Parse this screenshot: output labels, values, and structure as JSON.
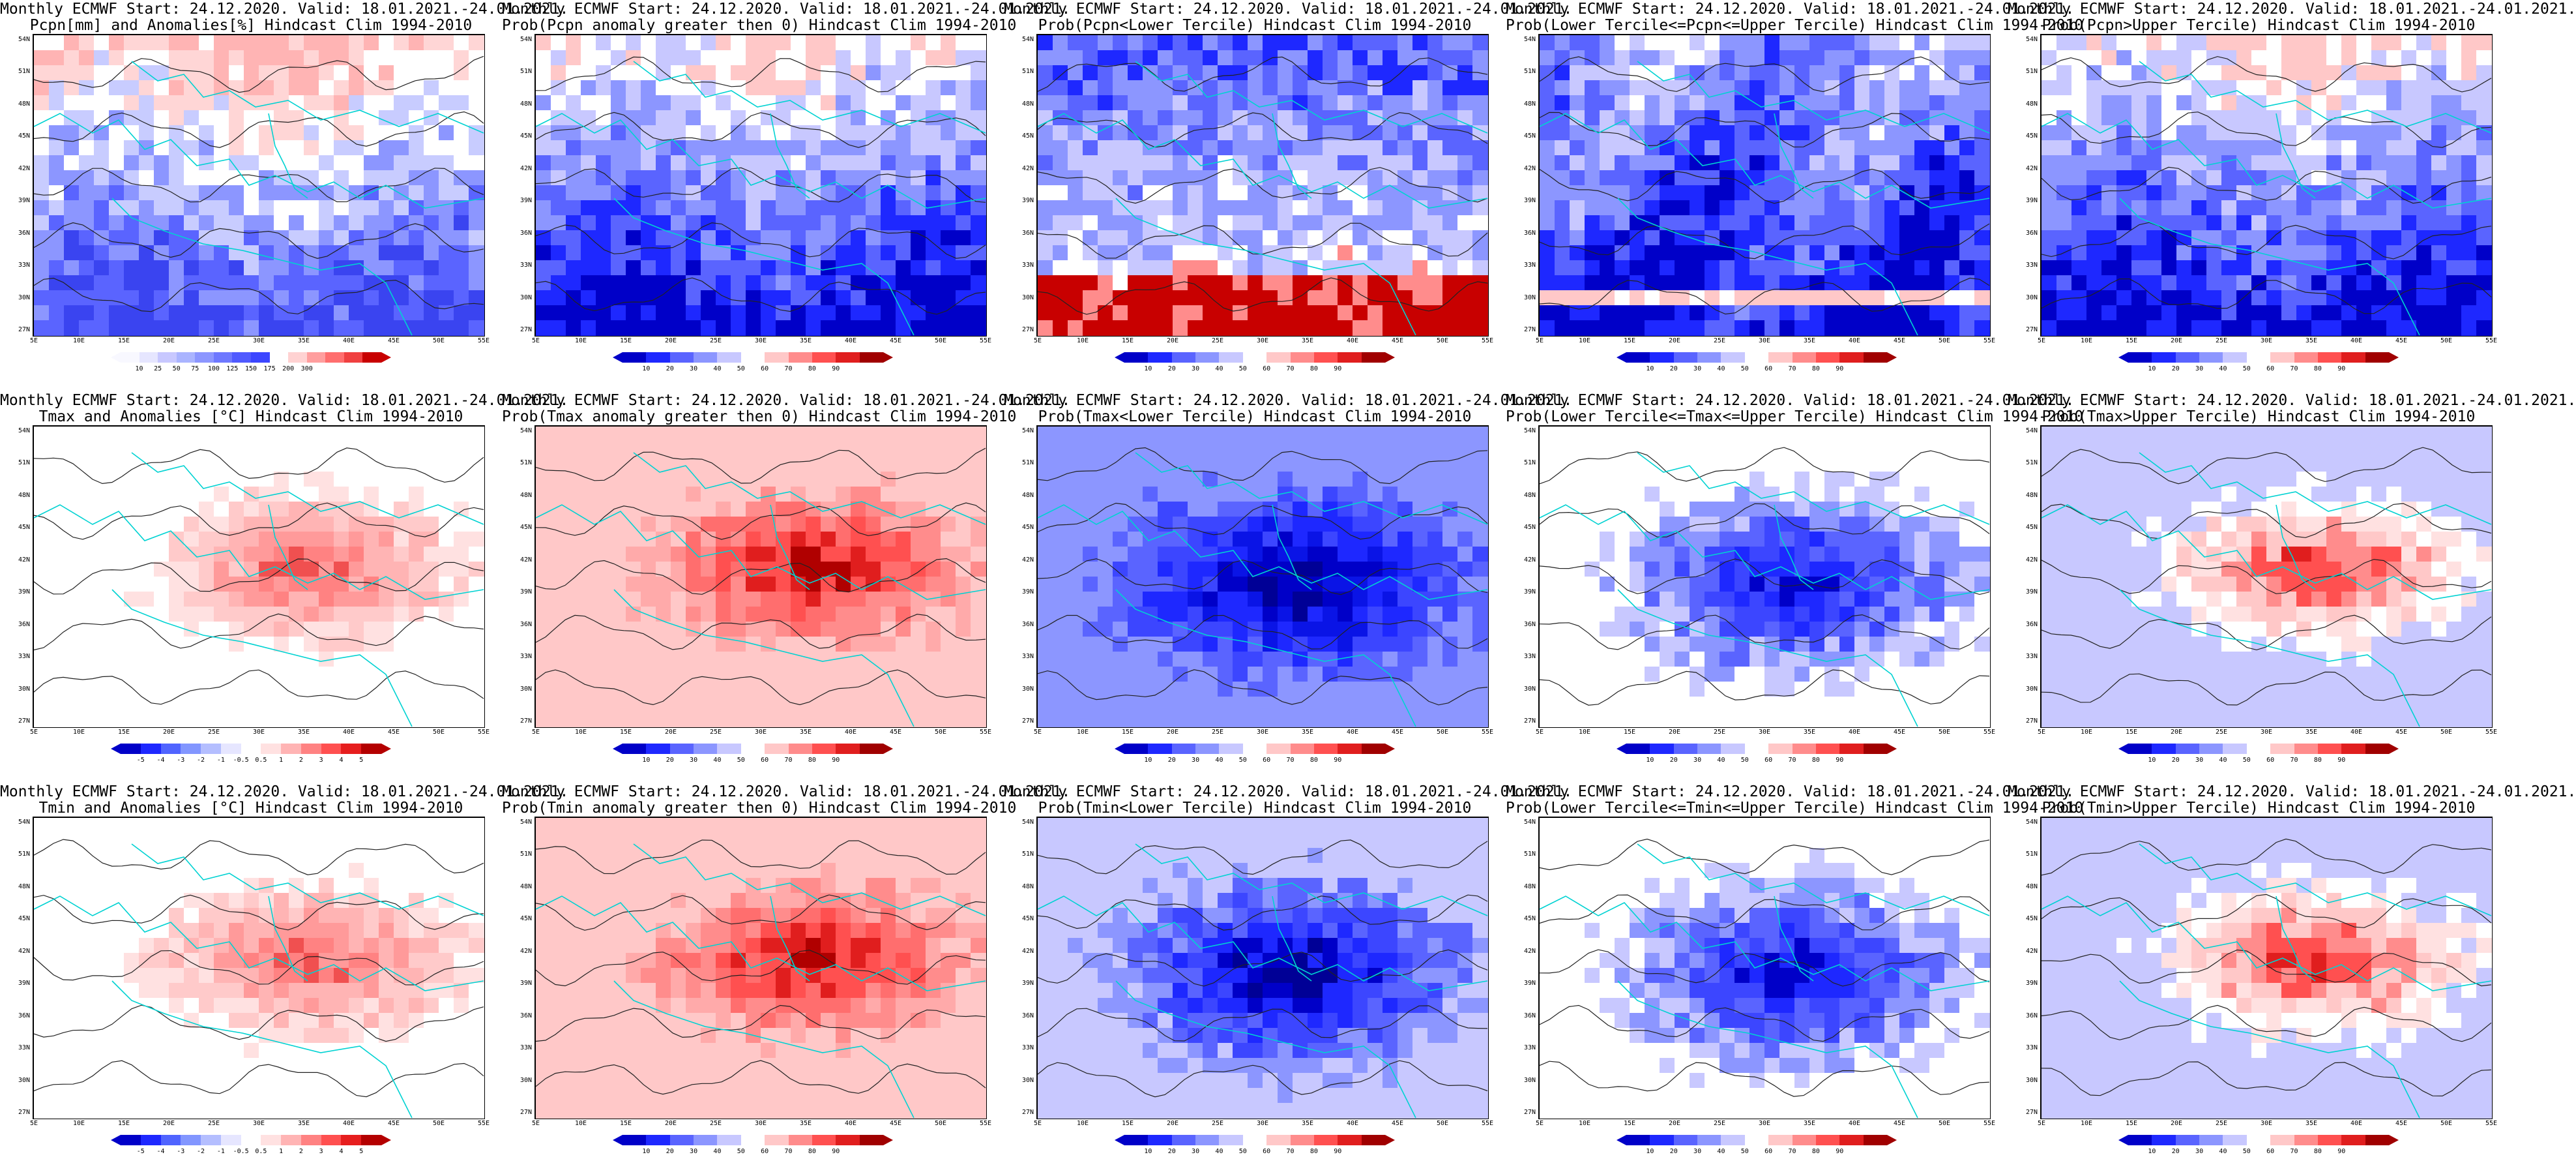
{
  "map_axes": {
    "lat_labels": [
      "54N",
      "51N",
      "48N",
      "45N",
      "42N",
      "39N",
      "36N",
      "33N",
      "30N",
      "27N"
    ],
    "lon_labels": [
      "5E",
      "10E",
      "15E",
      "20E",
      "25E",
      "30E",
      "35E",
      "40E",
      "45E",
      "50E",
      "55E"
    ]
  },
  "colorbars": {
    "pcpn_anom": {
      "colors": [
        "#f8f8ff",
        "#e6e6ff",
        "#c8c8ff",
        "#aab4ff",
        "#8c96ff",
        "#6e78ff",
        "#505aff",
        "#3c46ff",
        "#ffffff",
        "#ffd2d2",
        "#ff9e9e",
        "#ff6e6e",
        "#f04040",
        "#c80000"
      ],
      "labels": [
        "10",
        "25",
        "50",
        "75",
        "100",
        "125",
        "150",
        "175",
        "200",
        "300"
      ]
    },
    "prob": {
      "colors": [
        "#0000c8",
        "#1e28ff",
        "#5a64ff",
        "#8c96ff",
        "#c8c8ff",
        "#ffffff",
        "#ffc8c8",
        "#ff8c8c",
        "#ff5050",
        "#e01e1e",
        "#a00000"
      ],
      "labels": [
        "10",
        "20",
        "30",
        "40",
        "50",
        "60",
        "70",
        "80",
        "90"
      ]
    },
    "tmax_anom": {
      "colors": [
        "#0000c8",
        "#1e28ff",
        "#5064ff",
        "#8296ff",
        "#b4beff",
        "#e6e6ff",
        "#ffffff",
        "#ffe1e1",
        "#ffb4b4",
        "#ff8282",
        "#ff5050",
        "#e61e1e",
        "#b40000"
      ],
      "labels": [
        "-5",
        "-4",
        "-3",
        "-2",
        "-1",
        "-0.5",
        "0.5",
        "1",
        "2",
        "3",
        "4",
        "5"
      ]
    },
    "tmin_anom": {
      "colors": [
        "#0000c8",
        "#1e28ff",
        "#5064ff",
        "#8296ff",
        "#b4beff",
        "#e6e6ff",
        "#ffffff",
        "#ffe1e1",
        "#ffb4b4",
        "#ff8282",
        "#ff5050",
        "#e61e1e",
        "#b40000"
      ],
      "labels": [
        "-5",
        "-4",
        "-3",
        "-2",
        "-1",
        "-0.5",
        "0.5",
        "1",
        "2",
        "3",
        "4",
        "5"
      ]
    }
  },
  "panels": [
    {
      "line1": "Monthly ECMWF Start: 24.12.2020. Valid: 18.01.2021.-24.01.2021.",
      "line2": "Pcpn[mm] and Anomalies[%] Hindcast Clim 1994-2010",
      "bar": "pcpn_anom",
      "palette": [
        "#ffb4b4",
        "#ffd6d6",
        "#ffffff",
        "#c8ccff",
        "#8c96ff",
        "#5a64ff",
        "#3a44f0"
      ],
      "field": "south_blue"
    },
    {
      "line1": "Monthly ECMWF Start: 24.12.2020. Valid: 18.01.2021.-24.01.2021.",
      "line2": "Prob(Pcpn anomaly greater then 0) Hindcast Clim 1994-2010",
      "bar": "prob",
      "palette": [
        "#ffc8c8",
        "#ffffff",
        "#c8c8ff",
        "#8c96ff",
        "#5a64ff",
        "#1e28ff",
        "#0000c8"
      ],
      "field": "south_blue"
    },
    {
      "line1": "Monthly ECMWF Start: 24.12.2020. Valid: 18.01.2021.-24.01.2021.",
      "line2": "Prob(Pcpn<Lower Tercile) Hindcast Clim 1994-2010",
      "bar": "prob",
      "palette": [
        "#1e28ff",
        "#5a64ff",
        "#8c96ff",
        "#c8c8ff",
        "#ffffff",
        "#ff8c8c",
        "#c80000"
      ],
      "field": "south_red"
    },
    {
      "line1": "Monthly ECMWF Start: 24.12.2020. Valid: 18.01.2021.-24.01.2021.",
      "line2": "Prob(Lower Tercile<=Pcpn<=Upper Tercile) Hindcast Clim 1994-2010",
      "bar": "prob",
      "palette": [
        "#ffc8c8",
        "#ffffff",
        "#c8c8ff",
        "#8c96ff",
        "#5a64ff",
        "#1e28ff",
        "#0000c8"
      ],
      "field": "mixed"
    },
    {
      "line1": "Monthly ECMWF Start: 24.12.2020. Valid: 18.01.2021.-24.01.2021.",
      "line2": "Prob(Pcpn>Upper Tercile) Hindcast Clim 1994-2010",
      "bar": "prob",
      "palette": [
        "#ffc8c8",
        "#ffffff",
        "#c8c8ff",
        "#8c96ff",
        "#5a64ff",
        "#1e28ff",
        "#0000c8"
      ],
      "field": "south_blue"
    },
    {
      "line1": "Monthly ECMWF Start: 24.12.2020. Valid: 18.01.2021.-24.01.2021.",
      "line2": "Tmax and Anomalies [°C] Hindcast Clim 1994-2010",
      "bar": "tmax_anom",
      "palette": [
        "#ffffff",
        "#ffe1e1",
        "#ffcaca",
        "#ffb4b4",
        "#ff9a9a",
        "#ff8282",
        "#f05050"
      ],
      "field": "center_hot"
    },
    {
      "line1": "Monthly ECMWF Start: 24.12.2020. Valid: 18.01.2021.-24.01.2021.",
      "line2": "Prob(Tmax anomaly greater then 0) Hindcast Clim 1994-2010",
      "bar": "prob",
      "palette": [
        "#ffc8c8",
        "#ffaaaa",
        "#ff8c8c",
        "#ff6e6e",
        "#ff5050",
        "#e01e1e",
        "#b00000"
      ],
      "field": "center_hot"
    },
    {
      "line1": "Monthly ECMWF Start: 24.12.2020. Valid: 18.01.2021.-24.01.2021.",
      "line2": "Prob(Tmax<Lower Tercile) Hindcast Clim 1994-2010",
      "bar": "prob",
      "palette": [
        "#8c96ff",
        "#5a64ff",
        "#3c46ff",
        "#1e28ff",
        "#0a14e6",
        "#0000c8",
        "#000096"
      ],
      "field": "center_cold"
    },
    {
      "line1": "Monthly ECMWF Start: 24.12.2020. Valid: 18.01.2021.-24.01.2021.",
      "line2": "Prob(Lower Tercile<=Tmax<=Upper Tercile) Hindcast Clim 1994-2010",
      "bar": "prob",
      "palette": [
        "#ffffff",
        "#c8c8ff",
        "#8c96ff",
        "#5a64ff",
        "#3c46ff",
        "#1e28ff",
        "#0000c8"
      ],
      "field": "center_cold"
    },
    {
      "line1": "Monthly ECMWF Start: 24.12.2020. Valid: 18.01.2021.-24.01.2021.",
      "line2": "Prob(Tmax>Upper Tercile) Hindcast Clim 1994-2010",
      "bar": "prob",
      "palette": [
        "#c8c8ff",
        "#ffffff",
        "#ffe1e1",
        "#ffc8c8",
        "#ff8c8c",
        "#ff5050",
        "#e01e1e"
      ],
      "field": "center_hot"
    },
    {
      "line1": "Monthly ECMWF Start: 24.12.2020. Valid: 18.01.2021.-24.01.2021.",
      "line2": "Tmin and Anomalies [°C] Hindcast Clim 1994-2010",
      "bar": "tmin_anom",
      "palette": [
        "#ffffff",
        "#ffe1e1",
        "#ffcaca",
        "#ffb4b4",
        "#ff9a9a",
        "#ff8282",
        "#f05050"
      ],
      "field": "center_hot"
    },
    {
      "line1": "Monthly ECMWF Start: 24.12.2020. Valid: 18.01.2021.-24.01.2021.",
      "line2": "Prob(Tmin anomaly greater then 0) Hindcast Clim 1994-2010",
      "bar": "prob",
      "palette": [
        "#ffc8c8",
        "#ffaaaa",
        "#ff8c8c",
        "#ff6e6e",
        "#ff5050",
        "#e01e1e",
        "#b00000"
      ],
      "field": "center_hot"
    },
    {
      "line1": "Monthly ECMWF Start: 24.12.2020. Valid: 18.01.2021.-24.01.2021.",
      "line2": "Prob(Tmin<Lower Tercile) Hindcast Clim 1994-2010",
      "bar": "prob",
      "palette": [
        "#c8c8ff",
        "#8c96ff",
        "#5a64ff",
        "#3c46ff",
        "#1e28ff",
        "#0000c8",
        "#000096"
      ],
      "field": "center_cold"
    },
    {
      "line1": "Monthly ECMWF Start: 24.12.2020. Valid: 18.01.2021.-24.01.2021.",
      "line2": "Prob(Lower Tercile<=Tmin<=Upper Tercile) Hindcast Clim 1994-2010",
      "bar": "prob",
      "palette": [
        "#ffffff",
        "#c8c8ff",
        "#8c96ff",
        "#5a64ff",
        "#3c46ff",
        "#1e28ff",
        "#0000c8"
      ],
      "field": "center_cold"
    },
    {
      "line1": "Monthly ECMWF Start: 24.12.2020. Valid: 18.01.2021.-24.01.2021.",
      "line2": "Prob(Tmin>Upper Tercile) Hindcast Clim 1994-2010",
      "bar": "prob",
      "palette": [
        "#c8c8ff",
        "#ffffff",
        "#ffe1e1",
        "#ffc8c8",
        "#ff8c8c",
        "#ff5050",
        "#e01e1e"
      ],
      "field": "center_hot"
    }
  ]
}
